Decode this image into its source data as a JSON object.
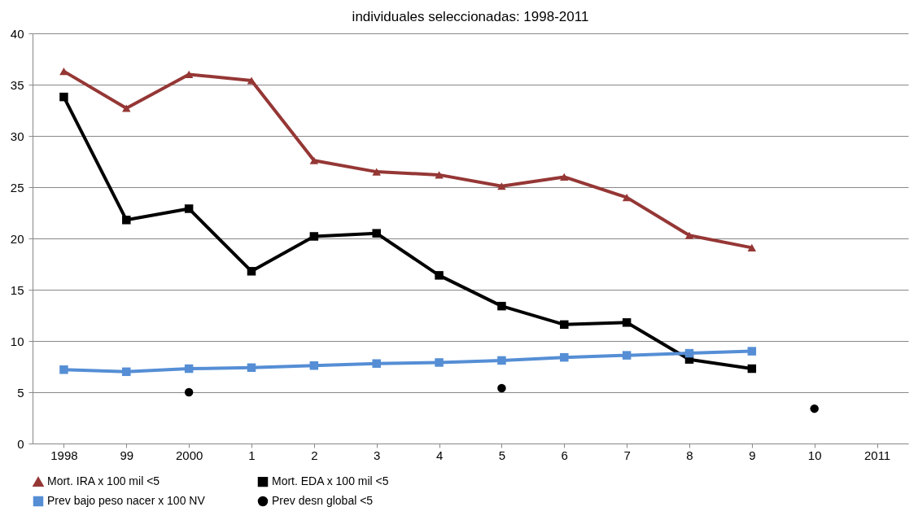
{
  "chart_data": {
    "type": "line",
    "title": "individuales seleccionadas: 1998-2011",
    "categories": [
      "1998",
      "99",
      "2000",
      "1",
      "2",
      "3",
      "4",
      "5",
      "6",
      "7",
      "8",
      "9",
      "10",
      "2011"
    ],
    "ylim": [
      0,
      40
    ],
    "yticks": [
      0,
      5,
      10,
      15,
      20,
      25,
      30,
      35,
      40
    ],
    "grid": "y",
    "legend": "bottom",
    "series": [
      {
        "name": "Mort. IRA x 100 mil <5",
        "color": "#953735",
        "marker": "triangle",
        "values": [
          36.3,
          32.7,
          36.0,
          35.4,
          27.6,
          26.5,
          26.2,
          25.1,
          26.0,
          24.0,
          20.3,
          19.1,
          null,
          null
        ]
      },
      {
        "name": "Mort. EDA x 100 mil <5",
        "color": "#000000",
        "marker": "square",
        "values": [
          33.8,
          21.8,
          22.9,
          16.8,
          20.2,
          20.5,
          16.4,
          13.4,
          11.6,
          11.8,
          8.2,
          7.3,
          null,
          null
        ]
      },
      {
        "name": "Prev bajo peso nacer x 100 NV",
        "color": "#558ed5",
        "marker": "square",
        "values": [
          7.2,
          7.0,
          7.3,
          7.4,
          7.6,
          7.8,
          7.9,
          8.1,
          8.4,
          8.6,
          8.8,
          9.0,
          null,
          null
        ]
      },
      {
        "name": "Prev desn global <5",
        "color": "#000000",
        "type": "scatter",
        "marker": "circle",
        "values": [
          null,
          null,
          5.0,
          null,
          null,
          null,
          null,
          5.4,
          null,
          null,
          null,
          null,
          3.4,
          null
        ]
      }
    ]
  }
}
